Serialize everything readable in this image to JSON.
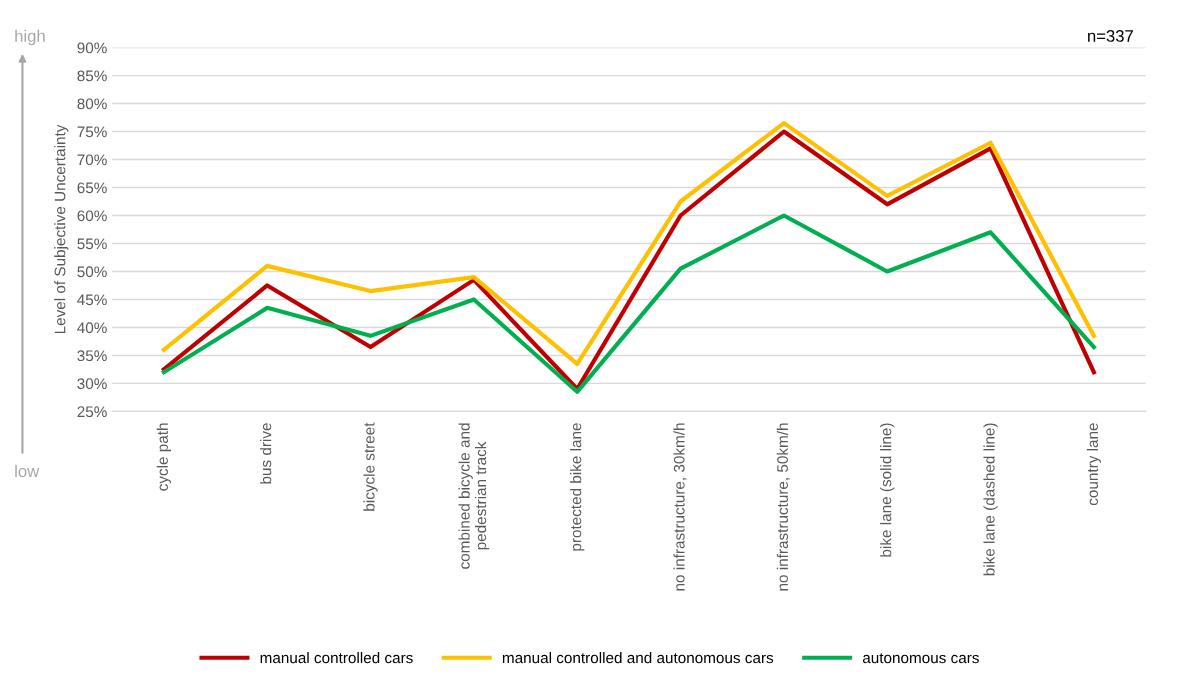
{
  "chart_data": {
    "type": "line",
    "ylabel": "Level of Subjective Uncertainty",
    "annotations": [
      "n=337",
      "high",
      "low"
    ],
    "categories": [
      "cycle path",
      "bus drive",
      "bicycle street",
      "combined bicycle and\npedestrian track",
      "protected bike lane",
      "no infrastructure, 30km/h",
      "no infrastructure, 50km/h",
      "bike lane (solid line)",
      "bike lane (dashed line)",
      "country lane"
    ],
    "series": [
      {
        "name": "manual controlled cars",
        "color": "#c00000",
        "values": [
          32.5,
          47.5,
          36.5,
          48.5,
          29,
          60,
          75,
          62,
          72,
          32
        ]
      },
      {
        "name": "manual controlled and autonomous cars",
        "color": "#ffc000",
        "values": [
          36,
          51,
          46.5,
          49,
          33.5,
          62.5,
          76.5,
          63.5,
          73,
          38.5
        ]
      },
      {
        "name": "autonomous cars",
        "color": "#00b050",
        "values": [
          32,
          43.5,
          38.5,
          45,
          28.5,
          50.5,
          60,
          50,
          57,
          36.5
        ]
      }
    ],
    "ylim": [
      25,
      90
    ],
    "yticks": [
      {
        "value": 25,
        "label": "25%"
      },
      {
        "value": 30,
        "label": "30%"
      },
      {
        "value": 35,
        "label": "35%"
      },
      {
        "value": 40,
        "label": "40%"
      },
      {
        "value": 45,
        "label": "45%"
      },
      {
        "value": 50,
        "label": "50%"
      },
      {
        "value": 55,
        "label": "55%"
      },
      {
        "value": 60,
        "label": "60%"
      },
      {
        "value": 65,
        "label": "65%"
      },
      {
        "value": 70,
        "label": "70%"
      },
      {
        "value": 75,
        "label": "75%"
      },
      {
        "value": 80,
        "label": "80%"
      },
      {
        "value": 85,
        "label": "85%"
      },
      {
        "value": 90,
        "label": "90%"
      }
    ],
    "grid": "y",
    "legend": "bottom",
    "marker": "none",
    "line_style": "solid"
  }
}
